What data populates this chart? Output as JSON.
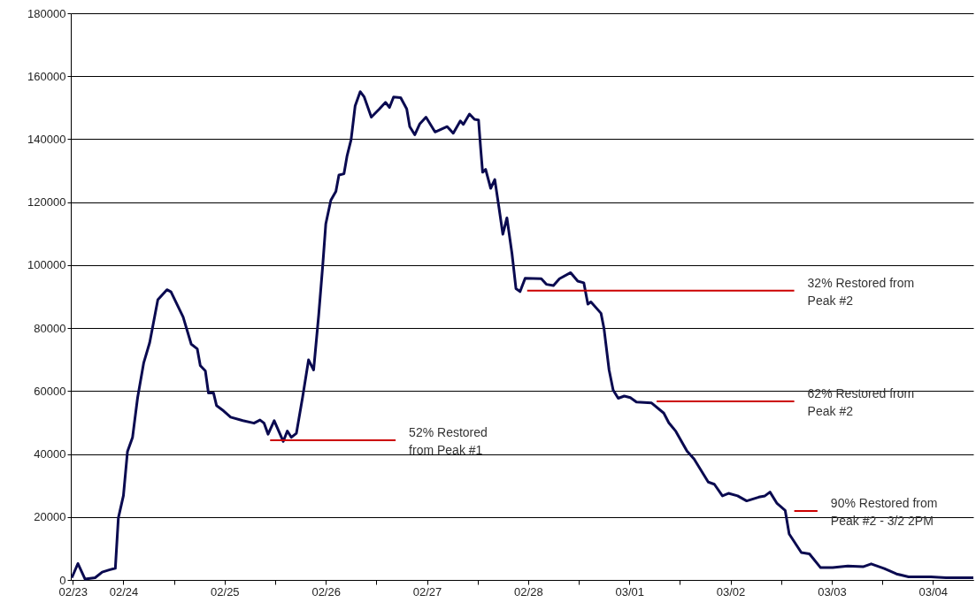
{
  "chart_data": {
    "type": "line",
    "series": [
      {
        "type": "line",
        "color": "#0a0a50",
        "x": [
          "--02-23T11:46",
          "--02-23T13:12",
          "--02-23T14:53",
          "--02-23T17:17",
          "--02-23T18:58",
          "--02-23T20:38",
          "--02-23T22:05",
          "--02-23T22:48",
          "--02-24T00:00",
          "--02-24T00:58",
          "--02-24T02:10",
          "--02-24T03:22",
          "--02-24T04:48",
          "--02-24T06:14",
          "--02-24T08:10",
          "--02-24T10:19",
          "--02-24T11:17",
          "--02-24T14:10",
          "--02-24T16:05",
          "--02-24T17:31",
          "--02-24T18:14",
          "--02-24T19:26",
          "--02-24T20:10",
          "--02-24T21:22",
          "--02-24T22:05",
          "--02-24T23:46",
          "--02-25T01:26",
          "--02-25T04:19",
          "--02-25T06:58",
          "--02-25T08:24",
          "--02-25T09:22",
          "--02-25T10:19",
          "--02-25T11:46",
          "--02-25T13:55",
          "--02-25T14:53",
          "--02-25T15:50",
          "--02-25T17:02",
          "--02-25T18:29",
          "--02-25T19:55",
          "--02-25T21:07",
          "--02-25T22:19",
          "--02-25T23:17",
          "--02-26T00:00",
          "--02-26T01:12",
          "--02-26T02:24",
          "--02-26T03:07",
          "--02-26T04:19",
          "--02-26T05:02",
          "--02-26T06:00",
          "--02-26T06:58",
          "--02-26T08:10",
          "--02-26T09:07",
          "--02-26T10:48",
          "--02-26T12:43",
          "--02-26T14:10",
          "--02-26T15:07",
          "--02-26T16:05",
          "--02-26T17:46",
          "--02-26T19:12",
          "--02-26T19:55",
          "--02-26T21:07",
          "--02-26T22:19",
          "--02-26T23:46",
          "--02-27T01:55",
          "--02-27T04:48",
          "--02-27T06:14",
          "--02-27T07:55",
          "--02-27T08:38",
          "--02-27T10:05",
          "--02-27T11:17",
          "--02-27T12:14",
          "--02-27T12:43",
          "--02-27T13:12",
          "--02-27T13:55",
          "--02-27T15:07",
          "--02-27T16:05",
          "--02-27T17:02",
          "--02-27T18:00",
          "--02-27T18:58",
          "--02-27T20:10",
          "--02-27T21:07",
          "--02-27T22:05",
          "--02-27T23:17",
          "--02-28T03:07",
          "--02-28T04:19",
          "--02-28T06:00",
          "--02-28T07:26",
          "--02-28T10:05",
          "--02-28T11:46",
          "--02-28T13:12",
          "--02-28T14:10",
          "--02-28T14:53",
          "--02-28T17:17",
          "--02-28T18:00",
          "--02-28T19:12",
          "--02-28T20:10",
          "--02-28T21:22",
          "--02-28T22:48",
          "--03-01T00:14",
          "--03-01T01:41",
          "--03-01T05:17",
          "--03-01T08:10",
          "--03-01T09:22",
          "--03-01T11:02",
          "--03-01T13:41",
          "--03-01T15:22",
          "--03-01T18:43",
          "--03-01T20:10",
          "--03-01T22:05",
          "--03-01T23:31",
          "--03-02T01:41",
          "--03-02T03:50",
          "--03-02T06:43",
          "--03-02T08:10",
          "--03-02T09:22",
          "--03-02T11:02",
          "--03-02T12:58",
          "--03-02T13:55",
          "--03-02T16:48",
          "--03-02T18:43",
          "--03-02T21:22",
          "--03-03T00:14",
          "--03-03T03:50",
          "--03-03T07:26",
          "--03-03T09:22",
          "--03-03T12:29",
          "--03-03T15:22",
          "--03-03T18:14",
          "--03-03T23:31",
          "--03-04T03:07",
          "--03-04T09:36"
        ],
        "values": [
          700,
          5200,
          300,
          700,
          2500,
          3200,
          3700,
          19700,
          26800,
          40800,
          45300,
          57900,
          68900,
          75400,
          89000,
          92200,
          91500,
          83500,
          74900,
          73400,
          68100,
          66400,
          59400,
          59400,
          55400,
          53700,
          51700,
          50600,
          49800,
          50800,
          49800,
          46300,
          50600,
          44000,
          47300,
          45300,
          46600,
          57900,
          69900,
          66700,
          84100,
          100000,
          113100,
          120600,
          123400,
          128600,
          129000,
          134600,
          139800,
          150600,
          155100,
          153400,
          147000,
          149600,
          151700,
          150100,
          153400,
          153200,
          149600,
          144000,
          141400,
          144900,
          147000,
          142300,
          144000,
          141900,
          145800,
          144700,
          148000,
          146300,
          146100,
          137400,
          129500,
          130400,
          124400,
          127200,
          118700,
          109800,
          115000,
          103700,
          92500,
          91600,
          95800,
          95700,
          93900,
          93500,
          95700,
          97600,
          94900,
          94400,
          87600,
          88300,
          84700,
          79800,
          66700,
          60300,
          57700,
          58400,
          57900,
          56500,
          56200,
          53000,
          49900,
          47200,
          40900,
          38400,
          31100,
          30400,
          26700,
          27500,
          26700,
          25100,
          26300,
          26700,
          27900,
          24300,
          22100,
          14600,
          8700,
          8300,
          3900,
          3900,
          4400,
          4200,
          5100,
          3600,
          1900,
          1000,
          1000,
          700,
          700
        ]
      },
      {
        "type": "line",
        "name": "52% Restored\nfrom Peak #1",
        "color": "#cc0000",
        "x": [
          "--02-25T10:48",
          "--02-26T16:34"
        ],
        "values": [
          44400,
          44400
        ]
      },
      {
        "type": "line",
        "name": "32% Restored from\nPeak #2",
        "color": "#cc0000",
        "x": [
          "--02-27T23:46",
          "--03-02T15:07"
        ],
        "values": [
          91900,
          91900
        ]
      },
      {
        "type": "line",
        "name": "62% Restored from\nPeak #2",
        "color": "#cc0000",
        "x": [
          "--03-01T06:29",
          "--03-02T15:07"
        ],
        "values": [
          56700,
          56700
        ]
      },
      {
        "type": "line",
        "name": "90% Restored from\nPeak #2 - 3/2 2PM",
        "color": "#cc0000",
        "x": [
          "--03-02T15:07",
          "--03-02T20:38"
        ],
        "values": [
          21900,
          21900
        ]
      }
    ],
    "xlim": [
      "--02-23T11:31",
      "--03-04T09:36"
    ],
    "xticks": [
      {
        "value": "--02-23T12:00",
        "label": "02/23"
      },
      {
        "value": "--02-24",
        "label": "02/24"
      },
      {
        "value": "--02-24T12:00",
        "label": null
      },
      {
        "value": "--02-25",
        "label": "02/25"
      },
      {
        "value": "--02-25T12:00",
        "label": null
      },
      {
        "value": "--02-26",
        "label": "02/26"
      },
      {
        "value": "--02-26T12:00",
        "label": null
      },
      {
        "value": "--02-27",
        "label": "02/27"
      },
      {
        "value": "--02-27T12:00",
        "label": null
      },
      {
        "value": "--02-28",
        "label": "02/28"
      },
      {
        "value": "--02-28T12:00",
        "label": null
      },
      {
        "value": "--03-01",
        "label": "03/01"
      },
      {
        "value": "--03-01T12:00",
        "label": null
      },
      {
        "value": "--03-02",
        "label": "03/02"
      },
      {
        "value": "--03-02T12:00",
        "label": null
      },
      {
        "value": "--03-03",
        "label": "03/03"
      },
      {
        "value": "--03-03T12:00",
        "label": null
      },
      {
        "value": "--03-04",
        "label": "03/04"
      }
    ],
    "ylim": [
      0,
      180000
    ],
    "yticks": [
      0,
      20000,
      40000,
      60000,
      80000,
      100000,
      120000,
      140000,
      160000,
      180000
    ],
    "grid": "y",
    "marker": "none",
    "line_style": "solid"
  }
}
